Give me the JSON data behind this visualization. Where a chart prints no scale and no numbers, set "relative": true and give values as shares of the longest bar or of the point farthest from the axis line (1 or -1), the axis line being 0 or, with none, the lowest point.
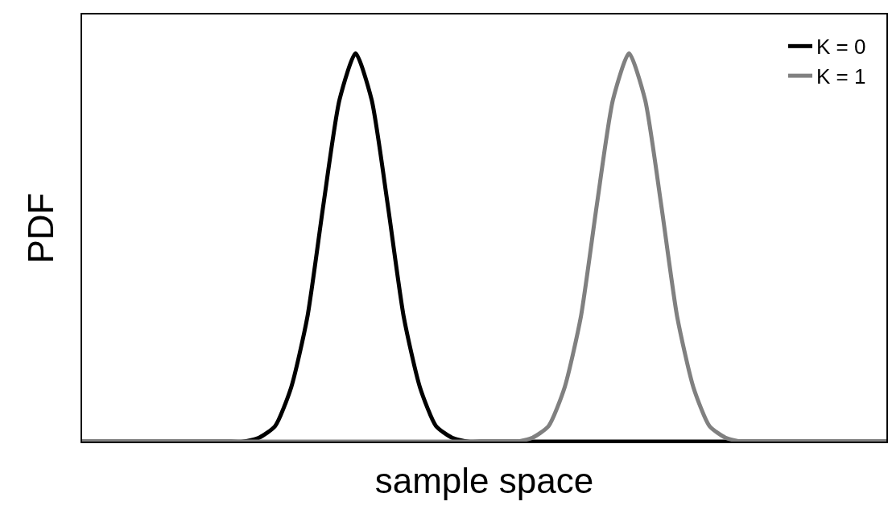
{
  "chart_data": {
    "type": "line",
    "xlabel": "sample space",
    "ylabel": "PDF",
    "relative": true,
    "legend": "top right",
    "line_style": "solid",
    "categories": [
      null,
      null,
      null,
      null,
      null,
      null,
      null,
      null,
      null,
      null,
      null,
      null,
      null,
      null,
      null,
      null,
      null,
      null,
      null,
      null,
      null,
      null,
      null,
      null,
      null,
      null,
      null,
      null,
      null,
      null,
      null,
      null,
      null,
      null,
      null,
      null,
      null,
      null,
      null,
      null,
      null,
      null,
      null,
      null,
      null,
      null,
      null,
      null,
      null,
      null,
      null
    ],
    "series": [
      {
        "name": "K = 0",
        "color": "#000000",
        "values": [
          0,
          0,
          0,
          0,
          0,
          0,
          0,
          0,
          0,
          0,
          0,
          0.01,
          0.04,
          0.14,
          0.32,
          0.61,
          0.88,
          1,
          0.88,
          0.61,
          0.32,
          0.14,
          0.04,
          0.01,
          0,
          0,
          0,
          0,
          0,
          0,
          0,
          0,
          0,
          0,
          0,
          0,
          0,
          0,
          0,
          0,
          0,
          0,
          0,
          0,
          0,
          0,
          0,
          0,
          0,
          0,
          0
        ]
      },
      {
        "name": "K = 1",
        "color": "#808080",
        "values": [
          0,
          0,
          0,
          0,
          0,
          0,
          0,
          0,
          0,
          0,
          0,
          0,
          0,
          0,
          0,
          0,
          0,
          0,
          0,
          0,
          0,
          0,
          0,
          0,
          0,
          0,
          0,
          0,
          0.01,
          0.04,
          0.14,
          0.32,
          0.61,
          0.88,
          1,
          0.88,
          0.61,
          0.32,
          0.14,
          0.04,
          0.01,
          0,
          0,
          0,
          0,
          0,
          0,
          0,
          0,
          0,
          0
        ]
      }
    ]
  }
}
